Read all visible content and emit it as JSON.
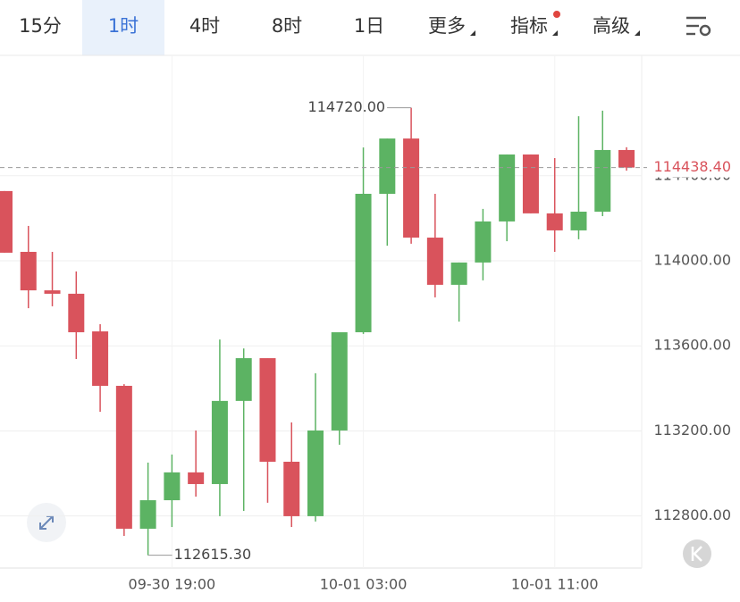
{
  "tabs": [
    "15分",
    "1时",
    "4时",
    "8时",
    "1日",
    "更多",
    "指标",
    "高级"
  ],
  "active_tab": 1,
  "chart_data": {
    "type": "candlestick",
    "categories": [
      null,
      null,
      null,
      null,
      null,
      null,
      null,
      "09-30 19:00",
      null,
      null,
      null,
      null,
      null,
      null,
      null,
      "10-01 03:00",
      null,
      null,
      null,
      null,
      null,
      null,
      null,
      "10-01 11:00",
      null,
      null,
      null
    ],
    "open": [
      114328,
      114042,
      113861,
      113845,
      113668,
      113412,
      112740,
      112874,
      113005,
      112950,
      113341,
      113542,
      113055,
      112799,
      113202,
      113664,
      114315,
      114575,
      114109,
      113887,
      113992,
      114185,
      114500,
      114223,
      114143,
      114231,
      114521
    ],
    "high": [
      114328,
      114164,
      114042,
      113950,
      113702,
      113420,
      113051,
      113089,
      113202,
      113630,
      113588,
      113542,
      113240,
      113471,
      113664,
      114533,
      114575,
      114720,
      114315,
      113992,
      114244,
      114500,
      114500,
      114483,
      114680,
      114706,
      114534
    ],
    "low": [
      114038,
      113777,
      113786,
      113538,
      113290,
      112706,
      112615.3,
      112748,
      112891,
      112799,
      112824,
      112862,
      112748,
      112774,
      113135,
      113656,
      114071,
      114080,
      113828,
      113714,
      113908,
      114092,
      114223,
      114042,
      114101,
      114210,
      114424
    ],
    "close": [
      114038,
      113861,
      113845,
      113664,
      113412,
      112740,
      112874,
      113005,
      112950,
      113341,
      113542,
      113055,
      112799,
      113202,
      113664,
      114315,
      114575,
      114109,
      113887,
      113992,
      114185,
      114500,
      114223,
      114143,
      114231,
      114521,
      114438.4
    ],
    "up_color": "#5cb363",
    "down_color": "#d9535c",
    "ylim": [
      112555,
      114966
    ],
    "yticks": [
      {
        "value": 112800,
        "label": "112800.00"
      },
      {
        "value": 113200,
        "label": "113200.00"
      },
      {
        "value": 113600,
        "label": "113600.00"
      },
      {
        "value": 114000,
        "label": "114000.00"
      },
      {
        "value": 114400,
        "label": "114400.00"
      }
    ],
    "grid": true,
    "last_price": {
      "value": 114438.4,
      "label": "114438.40"
    },
    "annotations": [
      {
        "index": 17,
        "value": 114720,
        "label": "114720.00"
      },
      {
        "index": 6,
        "value": 112615.3,
        "label": "112615.30"
      }
    ]
  }
}
